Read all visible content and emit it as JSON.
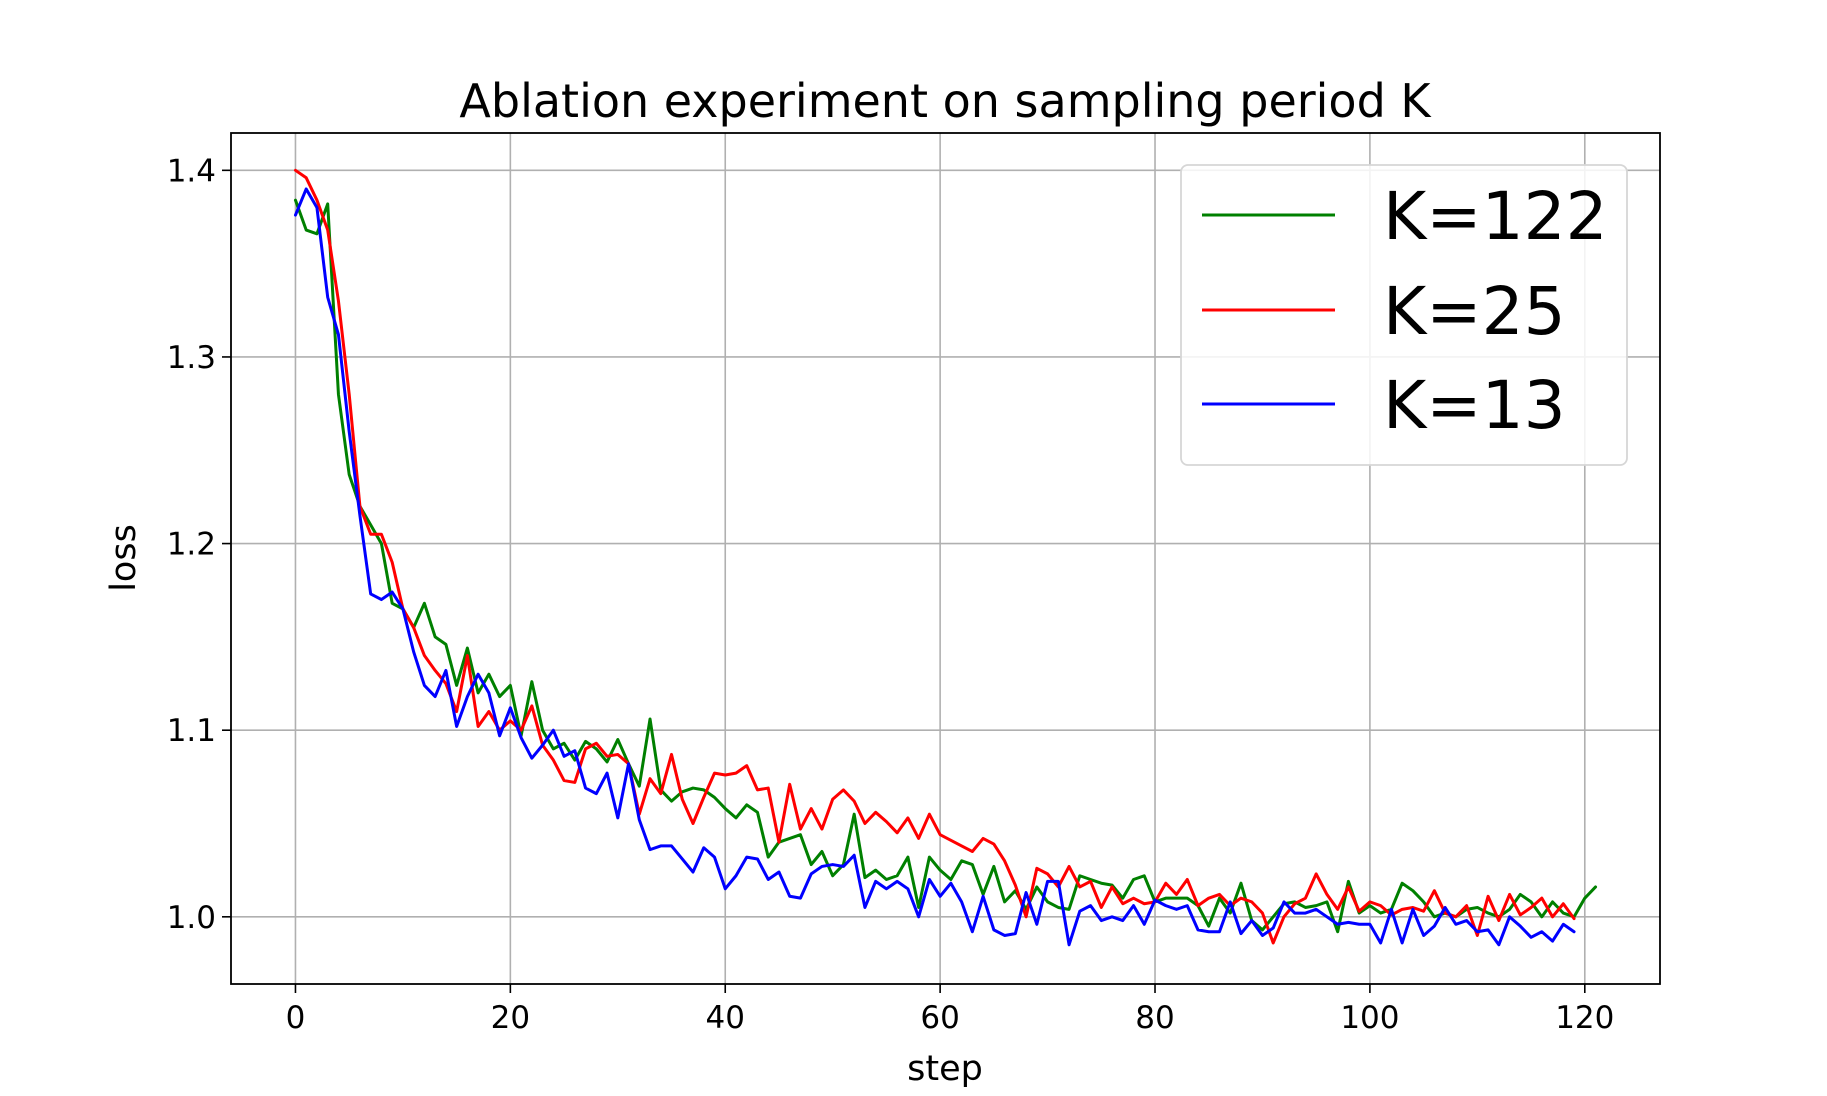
{
  "chart_data": {
    "type": "line",
    "title": "Ablation experiment on sampling period K",
    "xlabel": "step",
    "ylabel": "loss",
    "xlim": [
      -6,
      127
    ],
    "ylim": [
      0.964,
      1.42
    ],
    "xticks": [
      0,
      20,
      40,
      60,
      80,
      100,
      120
    ],
    "yticks": [
      1.0,
      1.1,
      1.2,
      1.3,
      1.4
    ],
    "xtick_labels": [
      "0",
      "20",
      "40",
      "60",
      "80",
      "100",
      "120"
    ],
    "ytick_labels": [
      "1.0",
      "1.1",
      "1.2",
      "1.3",
      "1.4"
    ],
    "grid": true,
    "legend_position": "top-right",
    "series": [
      {
        "name": "K=122",
        "color": "#008000",
        "x_start": 0,
        "values": [
          1.384,
          1.368,
          1.366,
          1.382,
          1.28,
          1.237,
          1.22,
          1.21,
          1.2,
          1.168,
          1.165,
          1.155,
          1.168,
          1.15,
          1.146,
          1.124,
          1.144,
          1.12,
          1.13,
          1.118,
          1.124,
          1.097,
          1.126,
          1.1,
          1.09,
          1.093,
          1.084,
          1.094,
          1.09,
          1.083,
          1.095,
          1.082,
          1.07,
          1.106,
          1.068,
          1.062,
          1.067,
          1.069,
          1.068,
          1.064,
          1.058,
          1.053,
          1.06,
          1.056,
          1.032,
          1.04,
          1.042,
          1.044,
          1.028,
          1.035,
          1.022,
          1.028,
          1.055,
          1.021,
          1.025,
          1.02,
          1.022,
          1.032,
          1.005,
          1.032,
          1.025,
          1.02,
          1.03,
          1.028,
          1.012,
          1.027,
          1.008,
          1.014,
          1.004,
          1.016,
          1.008,
          1.005,
          1.004,
          1.022,
          1.02,
          1.018,
          1.017,
          1.01,
          1.02,
          1.022,
          1.008,
          1.01,
          1.01,
          1.01,
          1.006,
          0.995,
          1.01,
          1.002,
          1.018,
          0.998,
          0.993,
          1.0,
          1.007,
          1.008,
          1.005,
          1.006,
          1.008,
          0.992,
          1.019,
          1.002,
          1.006,
          1.002,
          1.004,
          1.018,
          1.014,
          1.008,
          1.0,
          1.002,
          1.0,
          1.004,
          1.005,
          1.002,
          1.0,
          1.004,
          1.012,
          1.008,
          1.0,
          1.008,
          1.002,
          1.0,
          1.01,
          1.016
        ]
      },
      {
        "name": "K=25",
        "color": "#ff0000",
        "x_start": 0,
        "values": [
          1.4,
          1.396,
          1.384,
          1.368,
          1.33,
          1.28,
          1.22,
          1.205,
          1.205,
          1.19,
          1.165,
          1.155,
          1.14,
          1.132,
          1.125,
          1.11,
          1.14,
          1.102,
          1.11,
          1.1,
          1.105,
          1.1,
          1.113,
          1.092,
          1.084,
          1.073,
          1.072,
          1.09,
          1.093,
          1.086,
          1.087,
          1.082,
          1.055,
          1.074,
          1.066,
          1.087,
          1.063,
          1.05,
          1.064,
          1.077,
          1.076,
          1.077,
          1.081,
          1.068,
          1.069,
          1.04,
          1.071,
          1.047,
          1.058,
          1.047,
          1.063,
          1.068,
          1.062,
          1.05,
          1.056,
          1.051,
          1.045,
          1.053,
          1.042,
          1.055,
          1.044,
          1.041,
          1.038,
          1.035,
          1.042,
          1.039,
          1.03,
          1.017,
          1.0,
          1.026,
          1.023,
          1.016,
          1.027,
          1.016,
          1.019,
          1.005,
          1.016,
          1.007,
          1.01,
          1.007,
          1.008,
          1.018,
          1.012,
          1.02,
          1.006,
          1.01,
          1.012,
          1.006,
          1.01,
          1.008,
          1.002,
          0.986,
          1.0,
          1.007,
          1.01,
          1.023,
          1.012,
          1.004,
          1.016,
          1.003,
          1.008,
          1.006,
          1.001,
          1.004,
          1.005,
          1.003,
          1.014,
          1.002,
          1.0,
          1.006,
          0.99,
          1.011,
          0.998,
          1.012,
          1.001,
          1.005,
          1.01,
          1.0,
          1.007,
          0.999
        ]
      },
      {
        "name": "K=13",
        "color": "#0000ff",
        "x_start": 0,
        "values": [
          1.376,
          1.39,
          1.38,
          1.332,
          1.312,
          1.26,
          1.215,
          1.173,
          1.17,
          1.174,
          1.165,
          1.142,
          1.124,
          1.118,
          1.132,
          1.102,
          1.118,
          1.13,
          1.12,
          1.097,
          1.112,
          1.096,
          1.085,
          1.092,
          1.1,
          1.086,
          1.089,
          1.069,
          1.066,
          1.077,
          1.053,
          1.082,
          1.052,
          1.036,
          1.038,
          1.038,
          1.031,
          1.024,
          1.037,
          1.032,
          1.015,
          1.022,
          1.032,
          1.031,
          1.02,
          1.024,
          1.011,
          1.01,
          1.023,
          1.027,
          1.028,
          1.027,
          1.033,
          1.005,
          1.019,
          1.015,
          1.019,
          1.015,
          1.0,
          1.02,
          1.011,
          1.018,
          1.008,
          0.992,
          1.011,
          0.993,
          0.99,
          0.991,
          1.013,
          0.996,
          1.019,
          1.019,
          0.985,
          1.003,
          1.006,
          0.998,
          1.0,
          0.998,
          1.006,
          0.996,
          1.009,
          1.006,
          1.004,
          1.006,
          0.993,
          0.992,
          0.992,
          1.008,
          0.991,
          0.998,
          0.99,
          0.994,
          1.008,
          1.002,
          1.002,
          1.004,
          1.0,
          0.996,
          0.997,
          0.996,
          0.996,
          0.986,
          1.004,
          0.986,
          1.004,
          0.99,
          0.995,
          1.005,
          0.996,
          0.998,
          0.992,
          0.993,
          0.985,
          1.0,
          0.995,
          0.989,
          0.992,
          0.987,
          0.996,
          0.992
        ]
      }
    ]
  }
}
